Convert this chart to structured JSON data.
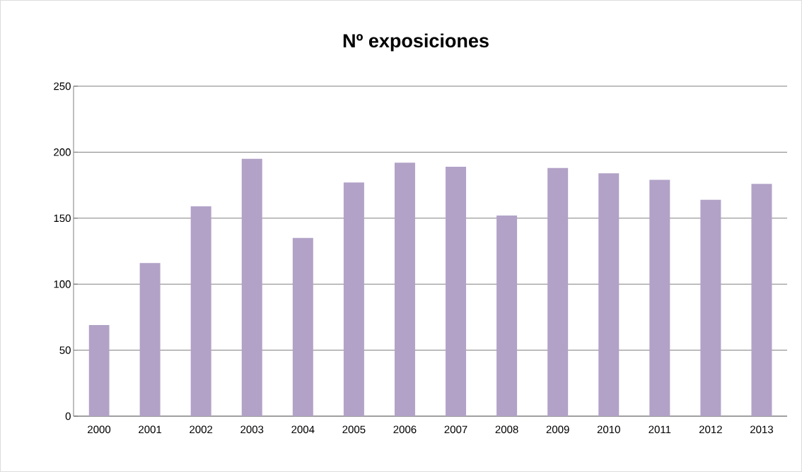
{
  "chart_data": {
    "type": "bar",
    "title": "Nº exposiciones",
    "categories": [
      "2000",
      "2001",
      "2002",
      "2003",
      "2004",
      "2005",
      "2006",
      "2007",
      "2008",
      "2009",
      "2010",
      "2011",
      "2012",
      "2013"
    ],
    "values": [
      69,
      116,
      159,
      195,
      135,
      177,
      192,
      189,
      152,
      188,
      184,
      179,
      164,
      176
    ],
    "color": "#b2a2c7",
    "ylim": [
      0,
      250
    ],
    "yticks": [
      0,
      50,
      100,
      150,
      200,
      250
    ],
    "grid": "y"
  }
}
